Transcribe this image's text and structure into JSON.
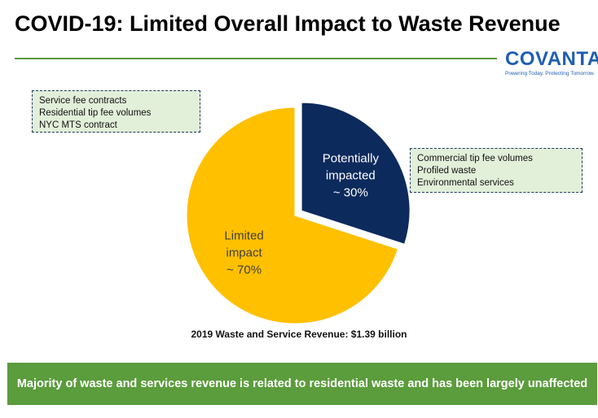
{
  "header": {
    "title": "COVID-19: Limited Overall Impact to Waste Revenue"
  },
  "logo": {
    "wordmark": "COVANTA",
    "tagline": "Powering Today. Protecting Tomorrow."
  },
  "callouts": {
    "limited": [
      "Service fee contracts",
      "Residential tip fee volumes",
      "NYC MTS contract"
    ],
    "impacted": [
      "Commercial tip fee volumes",
      "Profiled waste",
      "Environmental services"
    ]
  },
  "chart_data": {
    "type": "pie",
    "title": "2019 Waste and Service Revenue: $1.39 billion",
    "slices": [
      {
        "label_lines": [
          "Potentially",
          "impacted",
          "~ 30%"
        ],
        "value": 30,
        "color": "#0d2a5c",
        "exploded": true
      },
      {
        "label_lines": [
          "Limited",
          "impact",
          "~ 70%"
        ],
        "value": 70,
        "color": "#ffc000",
        "exploded": false
      }
    ]
  },
  "footer": {
    "banner": "Majority of waste and services revenue is related to residential waste and has been largely unaffected"
  },
  "colors": {
    "title_rule": "#5a9a3a",
    "banner_bg": "#5b9c3c",
    "brand_blue": "#1f5fb0",
    "callout_bg": "#e2efd9"
  }
}
